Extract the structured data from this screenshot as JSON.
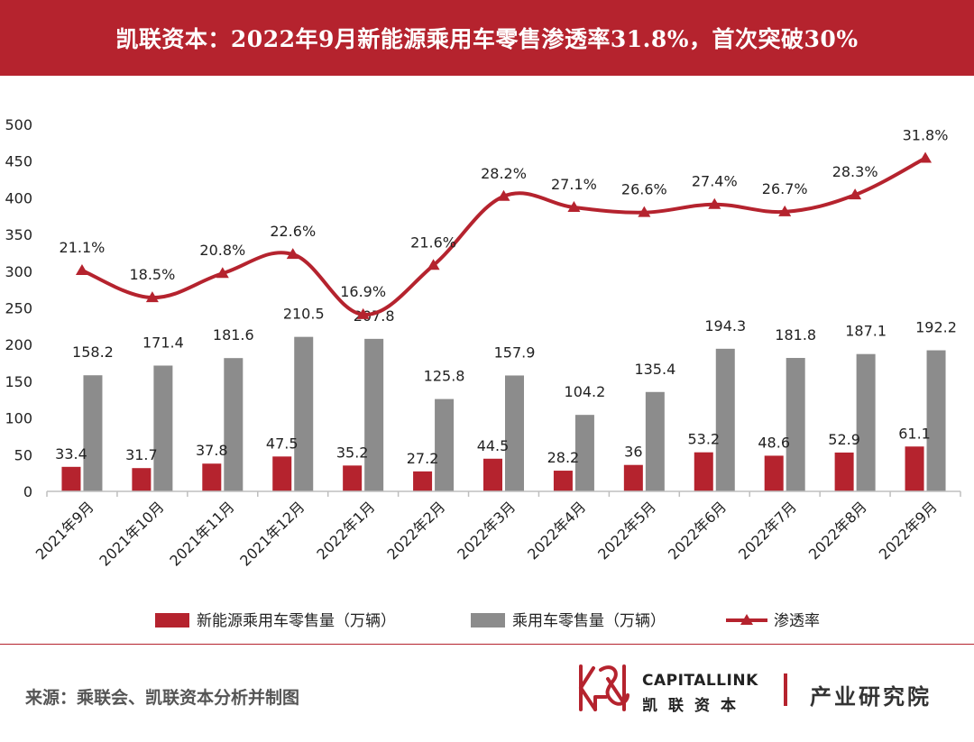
{
  "header": {
    "title": "凯联资本：2022年9月新能源乘用车零售渗透率31.8%，首次突破30%"
  },
  "chart_data": {
    "type": "bar",
    "title": "凯联资本：2022年9月新能源乘用车零售渗透率31.8%，首次突破30%",
    "categories": [
      "2021年9月",
      "2021年10月",
      "2021年11月",
      "2021年12月",
      "2022年1月",
      "2022年2月",
      "2022年3月",
      "2022年4月",
      "2022年5月",
      "2022年6月",
      "2022年7月",
      "2022年8月",
      "2022年9月"
    ],
    "ylim": [
      0,
      500
    ],
    "yticks": [
      0,
      50,
      100,
      150,
      200,
      250,
      300,
      350,
      400,
      450,
      500
    ],
    "series": [
      {
        "name": "新能源乘用车零售量（万辆）",
        "kind": "bar",
        "color": "#b5232e",
        "values": [
          33.4,
          31.7,
          37.8,
          47.5,
          35.2,
          27.2,
          44.5,
          28.2,
          36,
          53.2,
          48.6,
          52.9,
          61.1
        ],
        "labels": [
          "33.4",
          "31.7",
          "37.8",
          "47.5",
          "35.2",
          "27.2",
          "44.5",
          "28.2",
          "36",
          "53.2",
          "48.6",
          "52.9",
          "61.1"
        ]
      },
      {
        "name": "乘用车零售量（万辆）",
        "kind": "bar",
        "color": "#8c8c8c",
        "values": [
          158.2,
          171.4,
          181.6,
          210.5,
          207.8,
          125.8,
          157.9,
          104.2,
          135.4,
          194.3,
          181.8,
          187.1,
          192.2
        ],
        "labels": [
          "158.2",
          "171.4",
          "181.6",
          "210.5",
          "207.8",
          "125.8",
          "157.9",
          "104.2",
          "135.4",
          "194.3",
          "181.8",
          "187.1",
          "192.2"
        ]
      },
      {
        "name": "渗透率",
        "kind": "line",
        "color": "#b5232e",
        "values": [
          21.1,
          18.5,
          20.8,
          22.6,
          16.9,
          21.6,
          28.2,
          27.1,
          26.6,
          27.4,
          26.7,
          28.3,
          31.8
        ],
        "labels": [
          "21.1%",
          "18.5%",
          "20.8%",
          "22.6%",
          "16.9%",
          "21.6%",
          "28.2%",
          "27.1%",
          "26.6%",
          "27.4%",
          "26.7%",
          "28.3%",
          "31.8%"
        ],
        "axis_values": [
          301,
          264,
          297,
          323,
          241,
          308,
          402,
          387,
          380,
          391,
          381,
          404,
          454
        ]
      }
    ],
    "legend": "bottom",
    "grid": false
  },
  "footer": {
    "source": "来源：乘联会、凯联资本分析并制图",
    "brand_en": "CAPITALLINK",
    "brand_cn": "凯联资本",
    "department": "产业研究院"
  },
  "colors": {
    "accent": "#b5232e",
    "gray_bar": "#8c8c8c"
  }
}
